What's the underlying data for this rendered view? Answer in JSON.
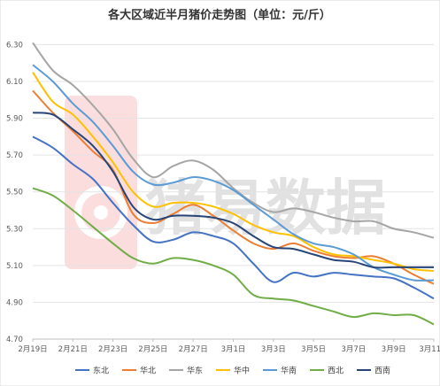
{
  "chart_data": {
    "type": "line",
    "title": "各大区域近半月猪价走势图（单位：元/斤）",
    "watermark": "猪易数据",
    "x": [
      "2月19日",
      "2月20日",
      "2月21日",
      "2月22日",
      "2月23日",
      "2月24日",
      "2月25日",
      "2月26日",
      "2月27日",
      "2月28日",
      "3月1日",
      "3月2日",
      "3月3日",
      "3月4日",
      "3月5日",
      "3月6日",
      "3月7日",
      "3月8日",
      "3月9日",
      "3月10日",
      "3月11日"
    ],
    "x_tick_labels": [
      "2月19日",
      "2月21日",
      "2月23日",
      "2月25日",
      "2月27日",
      "3月1日",
      "3月3日",
      "3月5日",
      "3月7日",
      "3月9日",
      "3月11日"
    ],
    "ylim": [
      4.7,
      6.35
    ],
    "y_ticks": [
      4.7,
      4.9,
      5.1,
      5.3,
      5.5,
      5.7,
      5.9,
      6.1,
      6.3
    ],
    "y_tick_labels": [
      "4.70",
      "4.90",
      "5.10",
      "5.30",
      "5.50",
      "5.70",
      "5.90",
      "6.10",
      "6.30"
    ],
    "grid": true,
    "legend_position": "bottom",
    "series": [
      {
        "name": "东北",
        "color": "#4472C4",
        "values": [
          5.8,
          5.74,
          5.65,
          5.57,
          5.44,
          5.32,
          5.23,
          5.24,
          5.28,
          5.26,
          5.22,
          5.11,
          5.01,
          5.06,
          5.04,
          5.06,
          5.05,
          5.04,
          5.03,
          4.98,
          4.92
        ]
      },
      {
        "name": "华北",
        "color": "#ED7D31",
        "values": [
          6.05,
          5.93,
          5.83,
          5.72,
          5.62,
          5.38,
          5.33,
          5.38,
          5.43,
          5.37,
          5.29,
          5.22,
          5.19,
          5.22,
          5.18,
          5.15,
          5.14,
          5.15,
          5.11,
          5.05,
          5.0
        ]
      },
      {
        "name": "华东",
        "color": "#A5A5A5",
        "values": [
          6.31,
          6.16,
          6.08,
          5.97,
          5.84,
          5.68,
          5.58,
          5.64,
          5.67,
          5.62,
          5.52,
          5.44,
          5.39,
          5.41,
          5.39,
          5.36,
          5.34,
          5.34,
          5.3,
          5.28,
          5.25
        ]
      },
      {
        "name": "华中",
        "color": "#FFC000",
        "values": [
          6.15,
          5.99,
          5.92,
          5.8,
          5.66,
          5.5,
          5.42,
          5.44,
          5.44,
          5.42,
          5.38,
          5.32,
          5.28,
          5.26,
          5.2,
          5.16,
          5.15,
          5.13,
          5.11,
          5.08,
          5.07
        ]
      },
      {
        "name": "华南",
        "color": "#5B9BD5",
        "values": [
          6.19,
          6.1,
          5.98,
          5.88,
          5.75,
          5.61,
          5.54,
          5.55,
          5.58,
          5.56,
          5.51,
          5.43,
          5.35,
          5.27,
          5.22,
          5.2,
          5.16,
          5.09,
          5.05,
          5.02,
          5.02
        ]
      },
      {
        "name": "西北",
        "color": "#70AD47",
        "values": [
          5.52,
          5.48,
          5.4,
          5.31,
          5.22,
          5.14,
          5.11,
          5.14,
          5.13,
          5.1,
          5.05,
          4.94,
          4.92,
          4.91,
          4.88,
          4.85,
          4.82,
          4.84,
          4.83,
          4.83,
          4.78
        ]
      },
      {
        "name": "西南",
        "color": "#264478",
        "values": [
          5.93,
          5.92,
          5.84,
          5.75,
          5.61,
          5.42,
          5.35,
          5.37,
          5.37,
          5.36,
          5.33,
          5.26,
          5.2,
          5.19,
          5.16,
          5.13,
          5.12,
          5.09,
          5.09,
          5.09,
          5.09
        ]
      }
    ]
  }
}
